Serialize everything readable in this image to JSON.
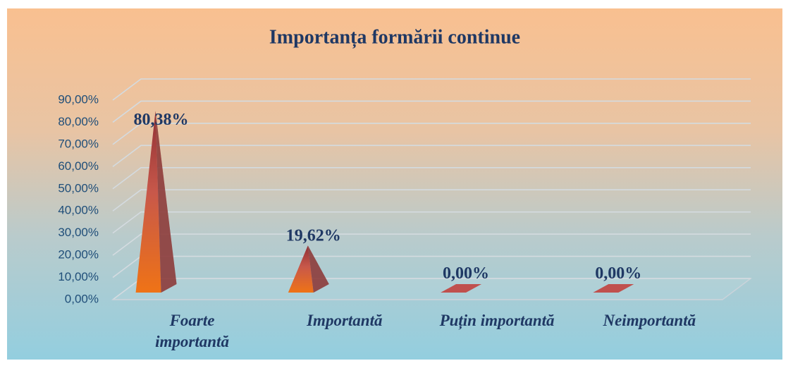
{
  "chart_data": {
    "type": "bar",
    "title": "Importanța formării continue",
    "categories": [
      "Foarte importantă",
      "Importantă",
      "Puțin importantă",
      "Neimportantă"
    ],
    "values": [
      80.38,
      19.62,
      0,
      0
    ],
    "value_labels": [
      "80,38%",
      "19,62%",
      "0,00%",
      "0,00%"
    ],
    "color": "#c0504d",
    "ylim": [
      0,
      90
    ],
    "yticks": [
      {
        "value": 0,
        "label": "0,00%"
      },
      {
        "value": 10,
        "label": "10,00%"
      },
      {
        "value": 20,
        "label": "20,00%"
      },
      {
        "value": 30,
        "label": "30,00%"
      },
      {
        "value": 40,
        "label": "40,00%"
      },
      {
        "value": 50,
        "label": "50,00%"
      },
      {
        "value": 60,
        "label": "60,00%"
      },
      {
        "value": 70,
        "label": "70,00%"
      },
      {
        "value": 80,
        "label": "80,00%"
      },
      {
        "value": 90,
        "label": "90,00%"
      }
    ],
    "grid": true
  }
}
